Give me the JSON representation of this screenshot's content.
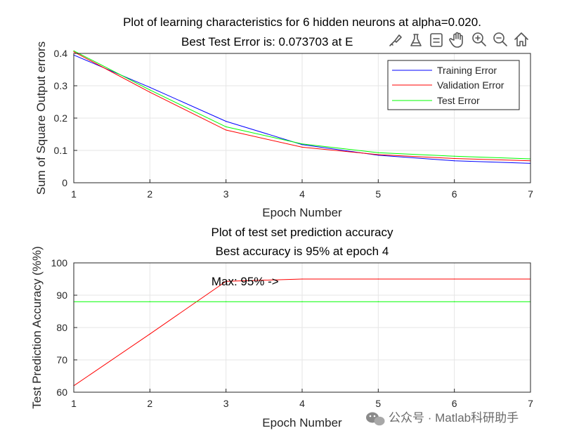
{
  "chart_data": [
    {
      "type": "line",
      "title": "Plot of learning characteristics for 6 hidden neurons at alpha=0.020.",
      "subtitle": "Best Test Error is: 0.073703 at E",
      "xlabel": "Epoch Number",
      "ylabel": "Sum of Square Output errors",
      "xlim": [
        1,
        7
      ],
      "ylim": [
        0,
        0.4
      ],
      "xticks": [
        "1",
        "2",
        "3",
        "4",
        "5",
        "6",
        "7"
      ],
      "yticks": [
        "0",
        "0.1",
        "0.2",
        "0.3",
        "0.4"
      ],
      "grid": true,
      "legend_position": "top-right",
      "x": [
        1,
        2,
        3,
        4,
        5,
        6,
        7
      ],
      "series": [
        {
          "name": "Training Error",
          "color": "#0000ff",
          "values": [
            0.395,
            0.295,
            0.19,
            0.118,
            0.085,
            0.068,
            0.06
          ]
        },
        {
          "name": "Validation Error",
          "color": "#ff0000",
          "values": [
            0.405,
            0.28,
            0.163,
            0.11,
            0.087,
            0.075,
            0.068
          ]
        },
        {
          "name": "Test Error",
          "color": "#00ff00",
          "values": [
            0.408,
            0.287,
            0.173,
            0.12,
            0.093,
            0.082,
            0.074
          ]
        }
      ]
    },
    {
      "type": "line",
      "title": "Plot of test set prediction accuracy",
      "subtitle": "Best accuracy is 95% at epoch 4",
      "xlabel": "Epoch Number",
      "ylabel": "Test Prediction Accuracy (%%)",
      "xlim": [
        1,
        7
      ],
      "ylim": [
        60,
        100
      ],
      "xticks": [
        "1",
        "2",
        "3",
        "4",
        "5",
        "6",
        "7"
      ],
      "yticks": [
        "60",
        "70",
        "80",
        "90",
        "100"
      ],
      "grid": true,
      "annotation": {
        "text": "Max: 95% ->",
        "x": 2.9,
        "y": 94.3
      },
      "x": [
        1,
        2,
        3,
        4,
        5,
        6,
        7
      ],
      "series": [
        {
          "color": "#ff0000",
          "values": [
            62,
            78,
            94.3,
            95,
            95,
            95,
            95
          ]
        },
        {
          "color": "#00ff00",
          "values": [
            88,
            88,
            88,
            88,
            88,
            88,
            88
          ]
        }
      ]
    }
  ],
  "toolbar": {
    "icons": [
      "brush-icon",
      "data-tip-icon",
      "legend-icon",
      "pan-icon",
      "zoom-in-icon",
      "zoom-out-icon",
      "home-icon"
    ]
  },
  "watermark": "公众号 · Matlab科研助手"
}
